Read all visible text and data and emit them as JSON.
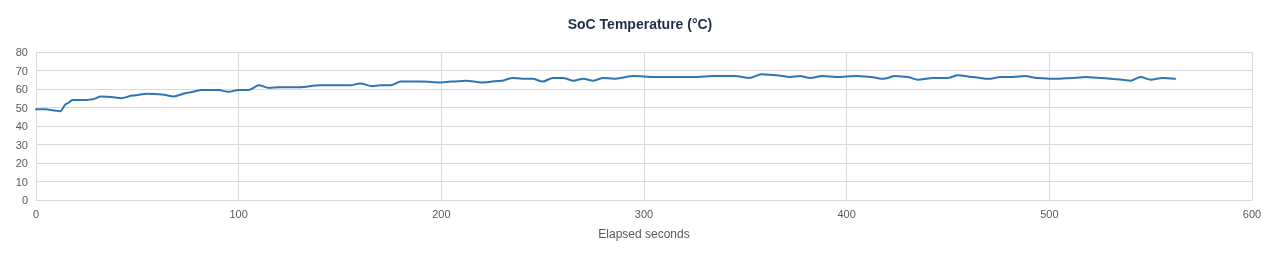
{
  "chart_data": {
    "type": "line",
    "title": "SoC Temperature (°C)",
    "xlabel": "Elapsed seconds",
    "x": [
      0,
      5,
      8,
      12,
      15,
      18,
      25,
      28,
      32,
      38,
      42,
      48,
      55,
      62,
      68,
      75,
      82,
      90,
      95,
      100,
      105,
      110,
      115,
      120,
      130,
      140,
      155,
      160,
      166,
      170,
      175,
      180,
      190,
      200,
      205,
      212,
      220,
      230,
      235,
      240,
      245,
      250,
      255,
      260,
      265,
      270,
      275,
      280,
      285,
      295,
      305,
      315,
      325,
      335,
      345,
      352,
      358,
      365,
      372,
      377,
      382,
      388,
      395,
      405,
      412,
      418,
      424,
      430,
      435,
      443,
      450,
      455,
      462,
      470,
      476,
      482,
      488,
      494,
      500,
      505,
      512,
      518,
      525,
      530,
      536,
      540,
      545,
      550,
      556,
      562
    ],
    "series": [
      {
        "color": "#2e75b6",
        "values": [
          49,
          49,
          48.5,
          48,
          52,
          54,
          54,
          54.5,
          56,
          55.5,
          55,
          56.5,
          57.5,
          57,
          56,
          58,
          59.5,
          59.5,
          58.5,
          59.5,
          59.5,
          62,
          60.5,
          61,
          61,
          62,
          62,
          63,
          61.5,
          62,
          62,
          64,
          64,
          63.5,
          64,
          64.5,
          63.5,
          64.5,
          66,
          65.5,
          65.5,
          64,
          66,
          66,
          64.5,
          65.5,
          64.5,
          66,
          65.5,
          67,
          66.5,
          66.5,
          66.5,
          67,
          67,
          66,
          68,
          67.5,
          66.5,
          67,
          66,
          67,
          66.5,
          67,
          66.5,
          65.5,
          67,
          66.5,
          65,
          66,
          66,
          67.5,
          66.5,
          65.5,
          66.5,
          66.5,
          67,
          66,
          65.5,
          65.5,
          66,
          66.5,
          66,
          65.5,
          65,
          64.5,
          66.5,
          65,
          66,
          65.5
        ]
      }
    ],
    "xlim": [
      0,
      600
    ],
    "xticks": [
      0,
      100,
      200,
      300,
      400,
      500,
      600
    ],
    "ylim": [
      0,
      80
    ],
    "yticks": [
      0,
      10,
      20,
      30,
      40,
      50,
      60,
      70,
      80
    ],
    "grid": true,
    "marker": "none",
    "line_style": "solid"
  }
}
